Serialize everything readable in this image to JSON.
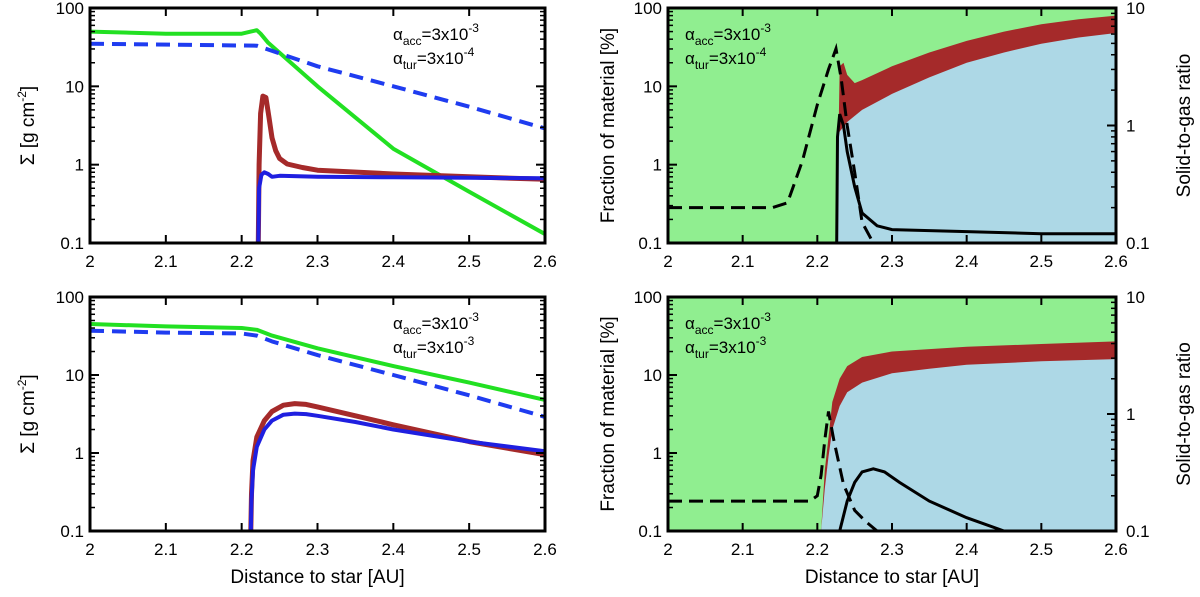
{
  "chart_data": [
    {
      "id": "top-left",
      "type": "line",
      "xlabel": "",
      "ylabel": "Σ [g cm-2]",
      "ylabel_parts": [
        "Σ [g cm",
        "-2",
        "]"
      ],
      "xlim": [
        2,
        2.6
      ],
      "ylim": [
        0.1,
        100
      ],
      "yscale": "log",
      "xticks": [
        "2",
        "2.1",
        "2.2",
        "2.3",
        "2.4",
        "2.5",
        "2.6"
      ],
      "yticks": [
        "0.1",
        "1",
        "10",
        "100"
      ],
      "annotation": {
        "line1": {
          "sym": "α",
          "sub": "acc",
          "text": "=3x10",
          "sup": "-3"
        },
        "line2": {
          "sym": "α",
          "sub": "tur",
          "text": "=3x10",
          "sup": "-4"
        }
      },
      "series": [
        {
          "color": "#22e022",
          "dash": false,
          "x": [
            2.0,
            2.1,
            2.2,
            2.212,
            2.22,
            2.225,
            2.235,
            2.3,
            2.4,
            2.5,
            2.6
          ],
          "y": [
            50,
            47,
            47,
            50,
            52,
            47,
            36,
            10,
            1.6,
            0.45,
            0.13
          ]
        },
        {
          "color": "#1f3cf0",
          "dash": true,
          "x": [
            2.0,
            2.22,
            2.3,
            2.4,
            2.5,
            2.6
          ],
          "y": [
            35,
            33,
            18,
            10,
            5.5,
            2.9
          ]
        },
        {
          "color": "#a52a2a",
          "dash": false,
          "x": [
            2.222,
            2.223,
            2.225,
            2.228,
            2.232,
            2.236,
            2.24,
            2.245,
            2.25,
            2.26,
            2.28,
            2.3,
            2.4,
            2.5,
            2.6
          ],
          "y": [
            0.1,
            1.0,
            4.5,
            7.5,
            7.2,
            4.0,
            2.2,
            1.5,
            1.2,
            1.02,
            0.92,
            0.85,
            0.76,
            0.7,
            0.65
          ]
        },
        {
          "color": "#1f1fe0",
          "dash": false,
          "x": [
            2.222,
            2.223,
            2.226,
            2.23,
            2.235,
            2.24,
            2.25,
            2.3,
            2.4,
            2.5,
            2.6
          ],
          "y": [
            0.1,
            0.5,
            0.74,
            0.8,
            0.76,
            0.7,
            0.72,
            0.7,
            0.69,
            0.68,
            0.67
          ]
        }
      ]
    },
    {
      "id": "top-right",
      "type": "area",
      "xlabel": "",
      "ylabel": "Fraction of material [%]",
      "y2label": "Solid-to-gas ratio",
      "xlim": [
        2,
        2.6
      ],
      "ylim": [
        0.1,
        100
      ],
      "y2lim": [
        0.1,
        10
      ],
      "yscale": "log",
      "xticks": [
        "2",
        "2.1",
        "2.2",
        "2.3",
        "2.4",
        "2.5",
        "2.6"
      ],
      "yticks": [
        "0.1",
        "1",
        "10",
        "100"
      ],
      "y2ticks": [
        "0.1",
        "1",
        "10"
      ],
      "annotation": {
        "line1": {
          "sym": "α",
          "sub": "acc",
          "text": "=3x10",
          "sup": "-3"
        },
        "line2": {
          "sym": "α",
          "sub": "tur",
          "text": "=3x10",
          "sup": "-4"
        }
      },
      "colors": {
        "gas": "#90ee90",
        "dust": "#add8e6",
        "ice": "#a52a2a"
      },
      "dust_area": {
        "x": [
          2.226,
          2.227,
          2.228,
          2.232,
          2.24,
          2.26,
          2.3,
          2.35,
          2.4,
          2.45,
          2.5,
          2.55,
          2.6
        ],
        "y": [
          0.1,
          1.5,
          2.5,
          2.8,
          3.5,
          5,
          8,
          13,
          20,
          27,
          35,
          42,
          48
        ]
      },
      "ice_area": {
        "x": [
          2.226,
          2.23,
          2.235,
          2.24,
          2.25,
          2.26,
          2.3,
          2.35,
          2.4,
          2.45,
          2.5,
          2.55,
          2.6
        ],
        "y": [
          0.1,
          18,
          20,
          14,
          11,
          12,
          18,
          27,
          38,
          50,
          62,
          72,
          80
        ]
      },
      "solid_to_gas_dashed": {
        "x": [
          2.0,
          2.1,
          2.14,
          2.16,
          2.18,
          2.2,
          2.215,
          2.225,
          2.232,
          2.24,
          2.25,
          2.26,
          2.275
        ],
        "y": [
          0.2,
          0.2,
          0.2,
          0.22,
          0.5,
          1.5,
          3.0,
          4.5,
          2.5,
          1.0,
          0.4,
          0.15,
          0.1
        ]
      },
      "solid_to_gas_solid": {
        "x": [
          2.226,
          2.227,
          2.23,
          2.235,
          2.24,
          2.25,
          2.26,
          2.28,
          2.3,
          2.4,
          2.5,
          2.6
        ],
        "y": [
          0.1,
          0.8,
          1.25,
          1.0,
          0.6,
          0.3,
          0.18,
          0.14,
          0.13,
          0.125,
          0.12,
          0.12
        ]
      }
    },
    {
      "id": "bottom-left",
      "type": "line",
      "xlabel": "Distance to star [AU]",
      "ylabel": "Σ [g cm-2]",
      "ylabel_parts": [
        "Σ [g cm",
        "-2",
        "]"
      ],
      "xlim": [
        2,
        2.6
      ],
      "ylim": [
        0.1,
        100
      ],
      "yscale": "log",
      "xticks": [
        "2",
        "2.1",
        "2.2",
        "2.3",
        "2.4",
        "2.5",
        "2.6"
      ],
      "yticks": [
        "0.1",
        "1",
        "10",
        "100"
      ],
      "annotation": {
        "line1": {
          "sym": "α",
          "sub": "acc",
          "text": "=3x10",
          "sup": "-3"
        },
        "line2": {
          "sym": "α",
          "sub": "tur",
          "text": "=3x10",
          "sup": "-3"
        }
      },
      "series": [
        {
          "color": "#22e022",
          "dash": false,
          "x": [
            2.0,
            2.1,
            2.2,
            2.22,
            2.24,
            2.3,
            2.4,
            2.5,
            2.6
          ],
          "y": [
            45,
            42,
            40,
            38,
            32,
            22,
            13,
            8,
            4.8
          ]
        },
        {
          "color": "#1f3cf0",
          "dash": true,
          "x": [
            2.0,
            2.1,
            2.2,
            2.22,
            2.24,
            2.3,
            2.4,
            2.5,
            2.6
          ],
          "y": [
            37,
            35,
            34,
            32,
            27,
            18,
            10,
            5.5,
            2.9
          ]
        },
        {
          "color": "#a52a2a",
          "dash": false,
          "x": [
            2.212,
            2.213,
            2.215,
            2.22,
            2.23,
            2.24,
            2.255,
            2.27,
            2.285,
            2.3,
            2.35,
            2.4,
            2.5,
            2.6
          ],
          "y": [
            0.1,
            0.3,
            0.8,
            1.6,
            2.6,
            3.4,
            4.1,
            4.3,
            4.2,
            3.9,
            3.0,
            2.3,
            1.4,
            0.95
          ]
        },
        {
          "color": "#1f1fe0",
          "dash": false,
          "x": [
            2.212,
            2.213,
            2.215,
            2.22,
            2.23,
            2.24,
            2.255,
            2.27,
            2.285,
            2.3,
            2.35,
            2.4,
            2.5,
            2.6
          ],
          "y": [
            0.1,
            0.25,
            0.6,
            1.2,
            2.0,
            2.6,
            3.1,
            3.2,
            3.15,
            3.0,
            2.5,
            2.0,
            1.4,
            1.05
          ]
        }
      ]
    },
    {
      "id": "bottom-right",
      "type": "area",
      "xlabel": "Distance to star [AU]",
      "ylabel": "Fraction of material [%]",
      "y2label": "Solid-to-gas ratio",
      "xlim": [
        2,
        2.6
      ],
      "ylim": [
        0.1,
        100
      ],
      "y2lim": [
        0.1,
        10
      ],
      "yscale": "log",
      "xticks": [
        "2",
        "2.1",
        "2.2",
        "2.3",
        "2.4",
        "2.5",
        "2.6"
      ],
      "yticks": [
        "0.1",
        "1",
        "10",
        "100"
      ],
      "y2ticks": [
        "0.1",
        "1",
        "10"
      ],
      "annotation": {
        "line1": {
          "sym": "α",
          "sub": "acc",
          "text": "=3x10",
          "sup": "-3"
        },
        "line2": {
          "sym": "α",
          "sub": "tur",
          "text": "=3x10",
          "sup": "-3"
        }
      },
      "colors": {
        "gas": "#90ee90",
        "dust": "#add8e6",
        "ice": "#a52a2a"
      },
      "dust_area": {
        "x": [
          2.205,
          2.21,
          2.215,
          2.22,
          2.23,
          2.24,
          2.26,
          2.3,
          2.35,
          2.4,
          2.5,
          2.6
        ],
        "y": [
          0.1,
          0.35,
          0.9,
          2.0,
          4.0,
          6.0,
          8.0,
          10.5,
          12,
          13.5,
          15,
          16
        ]
      },
      "ice_area": {
        "x": [
          2.205,
          2.21,
          2.215,
          2.22,
          2.23,
          2.24,
          2.26,
          2.3,
          2.35,
          2.4,
          2.5,
          2.6
        ],
        "y": [
          0.1,
          0.6,
          1.6,
          4.5,
          9.0,
          13.0,
          17.0,
          20.0,
          21.5,
          23,
          25,
          27
        ]
      },
      "solid_to_gas_dashed": {
        "x": [
          2.0,
          2.1,
          2.19,
          2.2,
          2.205,
          2.21,
          2.215,
          2.222,
          2.235,
          2.25,
          2.265,
          2.28
        ],
        "y": [
          0.18,
          0.18,
          0.18,
          0.2,
          0.3,
          0.6,
          1.05,
          0.6,
          0.25,
          0.15,
          0.12,
          0.1
        ]
      },
      "solid_to_gas_solid": {
        "x": [
          2.23,
          2.24,
          2.25,
          2.26,
          2.275,
          2.29,
          2.31,
          2.35,
          2.4,
          2.45
        ],
        "y": [
          0.1,
          0.18,
          0.26,
          0.32,
          0.34,
          0.32,
          0.26,
          0.18,
          0.13,
          0.1
        ]
      }
    }
  ]
}
